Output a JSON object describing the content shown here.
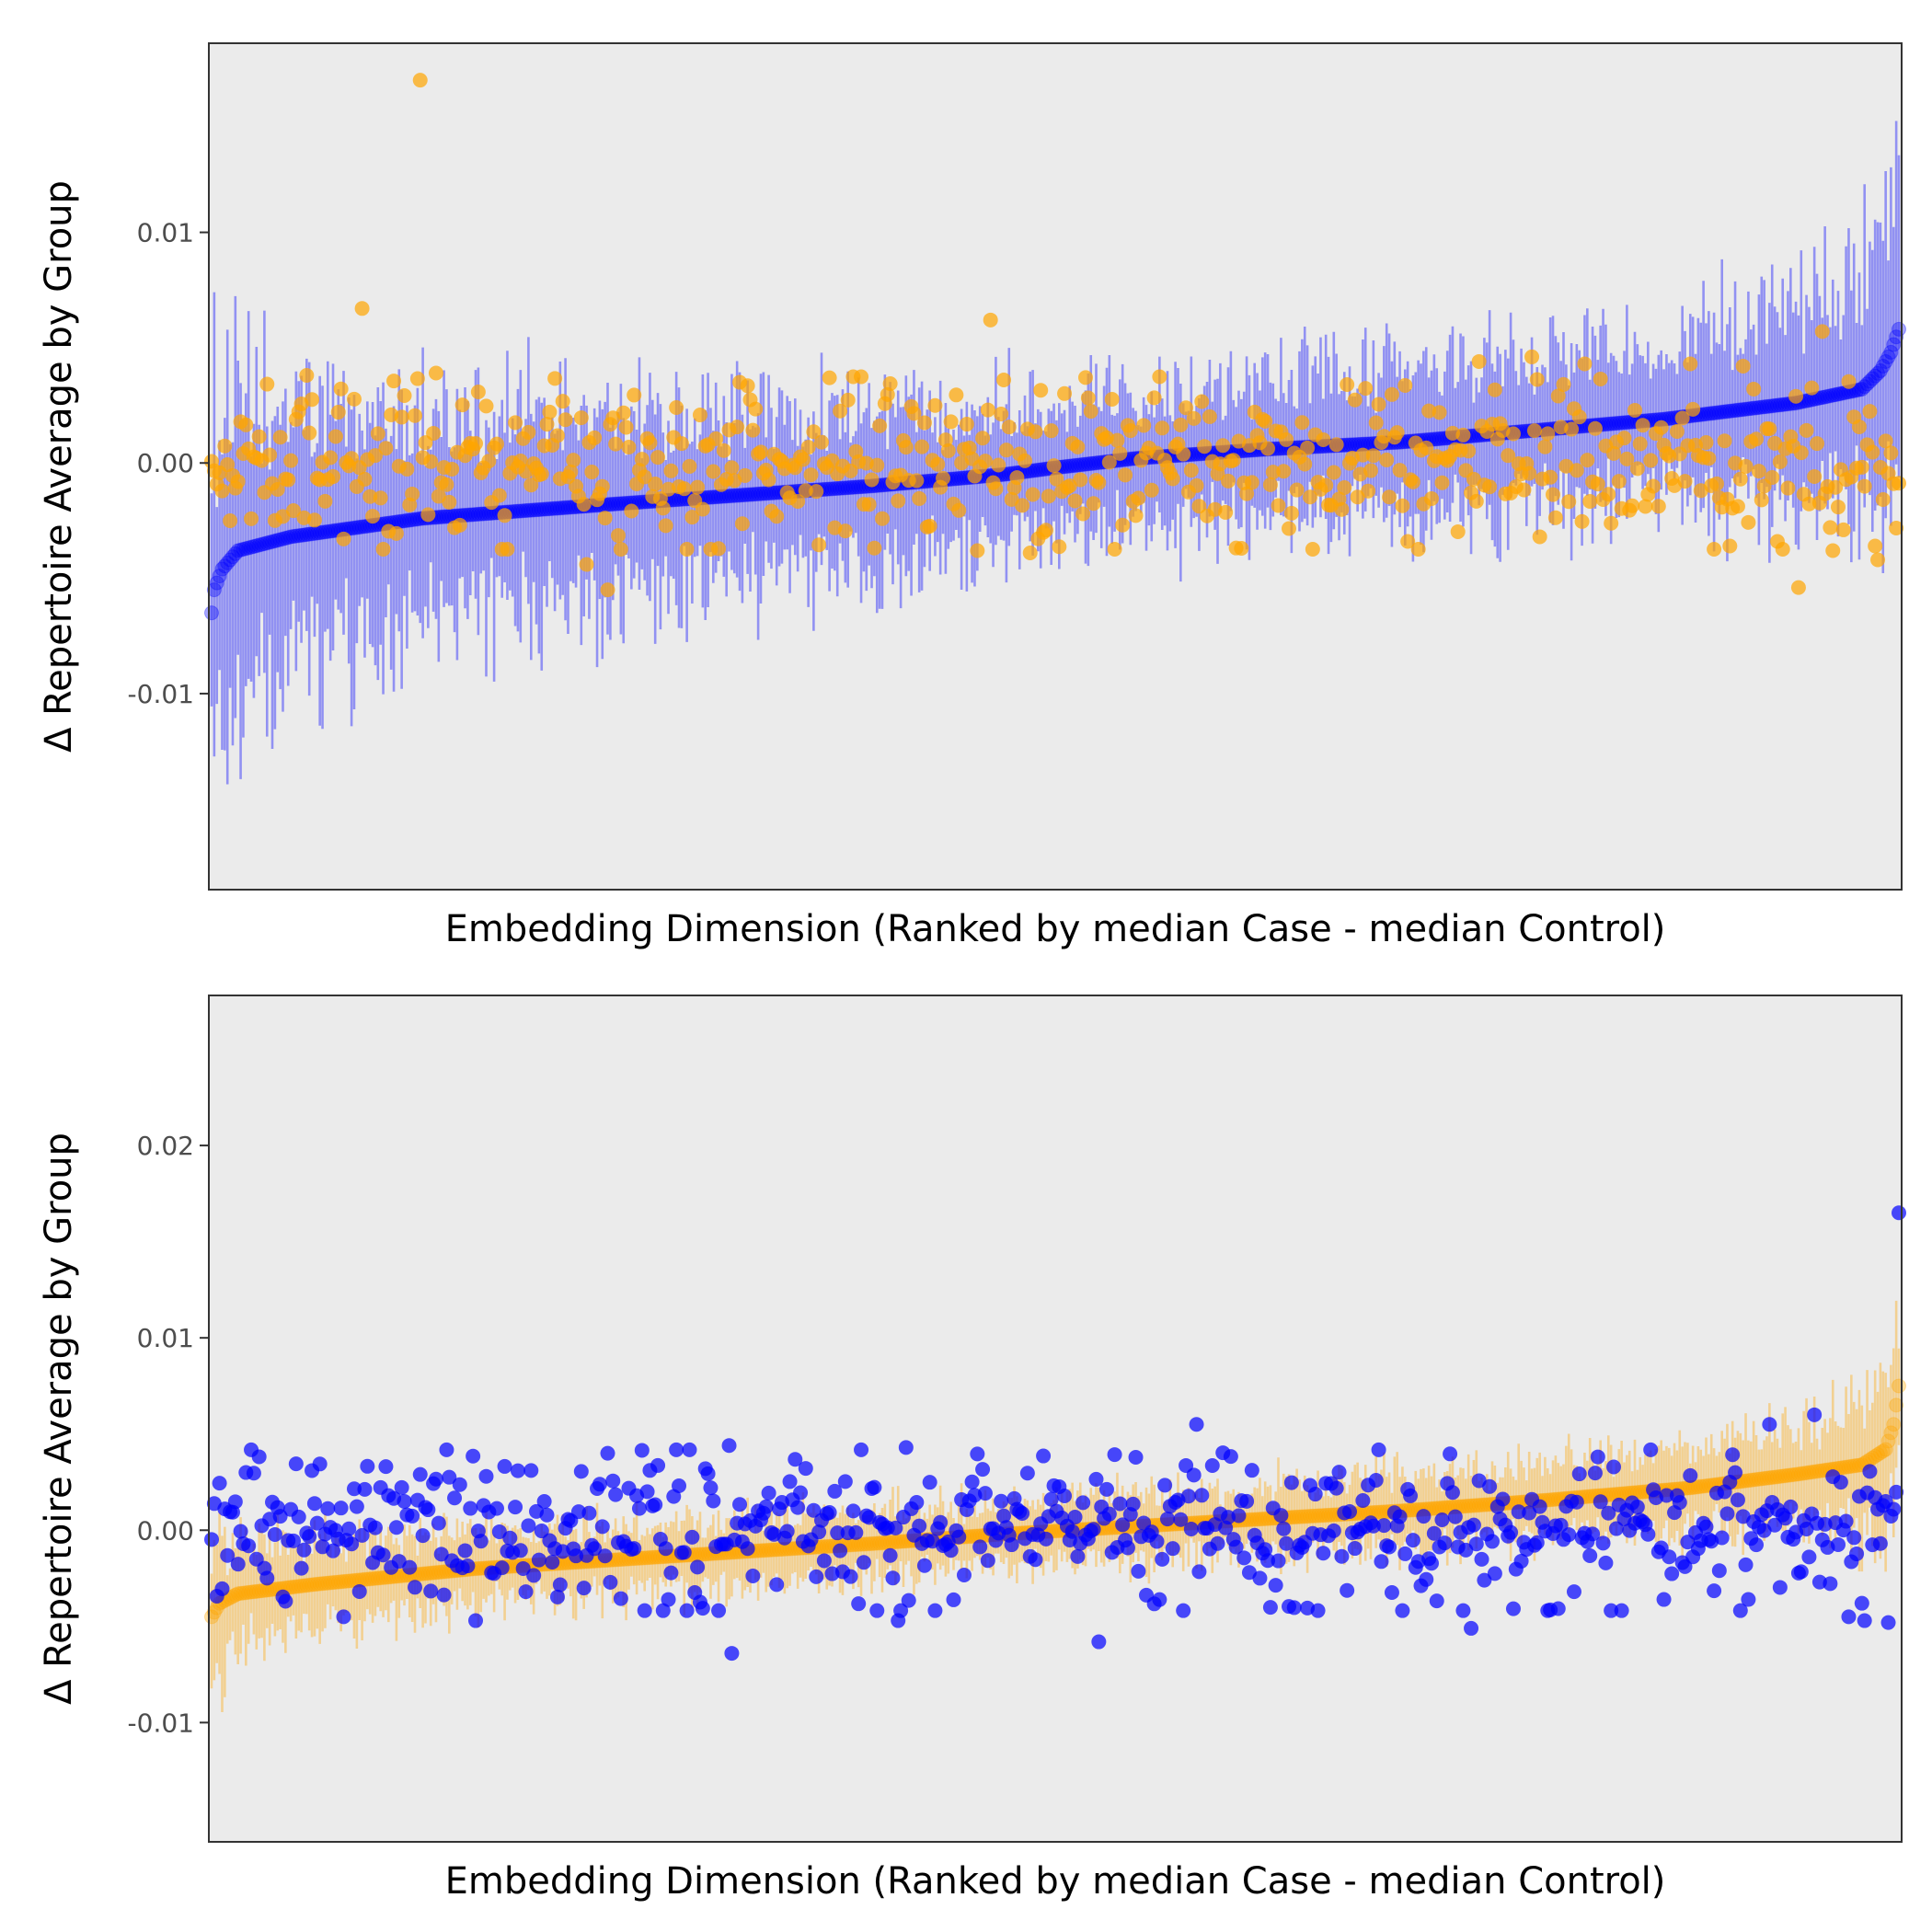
{
  "chart_data": [
    {
      "type": "scatter",
      "title": "",
      "xlabel": "Embedding Dimension (Ranked by median Case - median Control)",
      "ylabel": "Δ  Repertoire Average by Group",
      "ylim": [
        -0.0185,
        0.0182
      ],
      "yticks": [
        {
          "value": 0.01,
          "label": "0.01"
        },
        {
          "value": 0.0,
          "label": "0.00"
        },
        {
          "value": -0.01,
          "label": "-0.01"
        }
      ],
      "x_ticks_shown": false,
      "grid": false,
      "legend": "none",
      "n_dimensions": 640,
      "ranked_series": {
        "name": "",
        "color": "#0000ff",
        "median_curve": [
          [
            0,
            -0.0065
          ],
          [
            1,
            -0.0055
          ],
          [
            4,
            -0.0046
          ],
          [
            10,
            -0.0038
          ],
          [
            30,
            -0.0032
          ],
          [
            80,
            -0.0024
          ],
          [
            150,
            -0.0018
          ],
          [
            200,
            -0.0014
          ],
          [
            250,
            -0.001
          ],
          [
            300,
            -0.0005
          ],
          [
            320,
            -0.0002
          ],
          [
            350,
            0.0002
          ],
          [
            400,
            0.0006
          ],
          [
            450,
            0.0009
          ],
          [
            500,
            0.0014
          ],
          [
            550,
            0.0019
          ],
          [
            600,
            0.0026
          ],
          [
            625,
            0.0032
          ],
          [
            632,
            0.004
          ],
          [
            636,
            0.0048
          ],
          [
            639,
            0.0058
          ]
        ],
        "interval_halfwidth_curve": [
          [
            0,
            0.0075
          ],
          [
            15,
            0.0058
          ],
          [
            80,
            0.0044
          ],
          [
            200,
            0.0035
          ],
          [
            320,
            0.003
          ],
          [
            450,
            0.003
          ],
          [
            560,
            0.0035
          ],
          [
            610,
            0.0042
          ],
          [
            639,
            0.0055
          ]
        ]
      },
      "comparison_series": {
        "name": "",
        "color": "#ffa500",
        "spread": 0.0017,
        "highlighted_points": [
          [
            79,
            0.0166
          ],
          [
            57,
            0.0067
          ],
          [
            295,
            0.0062
          ],
          [
            36,
            0.0038
          ],
          [
            85,
            0.0039
          ],
          [
            200,
            0.0035
          ],
          [
            300,
            0.0036
          ],
          [
            390,
            0.0033
          ],
          [
            430,
            0.0034
          ],
          [
            480,
            0.0044
          ],
          [
            500,
            0.0046
          ],
          [
            520,
            0.0043
          ],
          [
            560,
            0.0043
          ],
          [
            580,
            0.0042
          ],
          [
            610,
            0.0057
          ],
          [
            630,
            0.004
          ],
          [
            655,
            0.0045
          ],
          [
            720,
            0.0052
          ],
          [
            747,
            0.0052
          ],
          [
            142,
            -0.0044
          ],
          [
            150,
            -0.0055
          ],
          [
            290,
            -0.0038
          ],
          [
            310,
            -0.0039
          ],
          [
            390,
            -0.0037
          ],
          [
            453,
            -0.0034
          ],
          [
            503,
            -0.0032
          ],
          [
            593,
            -0.0034
          ],
          [
            601,
            -0.0054
          ],
          [
            613,
            -0.0028
          ],
          [
            618,
            -0.0029
          ],
          [
            614,
            -0.0038
          ],
          [
            630,
            -0.0036
          ],
          [
            631,
            -0.0042
          ],
          [
            575,
            -0.0036
          ]
        ]
      }
    },
    {
      "type": "scatter",
      "title": "",
      "xlabel": "Embedding Dimension (Ranked by median Case - median Control)",
      "ylabel": "Δ  Repertoire Average by Group",
      "ylim": [
        -0.0162,
        0.0278
      ],
      "yticks": [
        {
          "value": 0.02,
          "label": "0.02"
        },
        {
          "value": 0.01,
          "label": "0.01"
        },
        {
          "value": 0.0,
          "label": "0.00"
        },
        {
          "value": -0.01,
          "label": "-0.01"
        }
      ],
      "x_ticks_shown": false,
      "grid": false,
      "legend": "none",
      "n_dimensions": 640,
      "ranked_series": {
        "name": "",
        "color": "#ffa500",
        "median_curve": [
          [
            0,
            -0.0045
          ],
          [
            3,
            -0.0038
          ],
          [
            10,
            -0.0033
          ],
          [
            40,
            -0.0028
          ],
          [
            100,
            -0.002
          ],
          [
            180,
            -0.0013
          ],
          [
            250,
            -0.0007
          ],
          [
            300,
            -0.0002
          ],
          [
            350,
            0.0002
          ],
          [
            400,
            0.0006
          ],
          [
            450,
            0.001
          ],
          [
            500,
            0.0015
          ],
          [
            560,
            0.0022
          ],
          [
            600,
            0.0029
          ],
          [
            625,
            0.0034
          ],
          [
            634,
            0.0042
          ],
          [
            637,
            0.0055
          ],
          [
            639,
            0.0075
          ]
        ],
        "interval_halfwidth_curve": [
          [
            0,
            0.0035
          ],
          [
            15,
            0.0024
          ],
          [
            80,
            0.0018
          ],
          [
            300,
            0.0016
          ],
          [
            500,
            0.0018
          ],
          [
            600,
            0.0024
          ],
          [
            639,
            0.004
          ]
        ]
      },
      "comparison_series": {
        "name": "",
        "color": "#0000ff",
        "spread": 0.0019,
        "highlighted_points": [
          [
            639,
            0.0165
          ],
          [
            197,
            -0.0064
          ],
          [
            373,
            0.0055
          ],
          [
            477,
            -0.0051
          ],
          [
            336,
            -0.0058
          ],
          [
            590,
            0.0055
          ],
          [
            196,
            0.0044
          ],
          [
            263,
            0.0043
          ],
          [
            13,
            0.003
          ],
          [
            38,
            0.0031
          ],
          [
            150,
            0.004
          ],
          [
            620,
            0.0048
          ],
          [
            607,
            0.006
          ],
          [
            50,
            -0.0045
          ],
          [
            100,
            -0.0047
          ],
          [
            260,
            -0.0047
          ],
          [
            550,
            -0.0036
          ],
          [
            582,
            -0.0036
          ],
          [
            620,
            -0.0045
          ],
          [
            626,
            -0.0047
          ],
          [
            635,
            -0.0048
          ]
        ]
      }
    }
  ]
}
